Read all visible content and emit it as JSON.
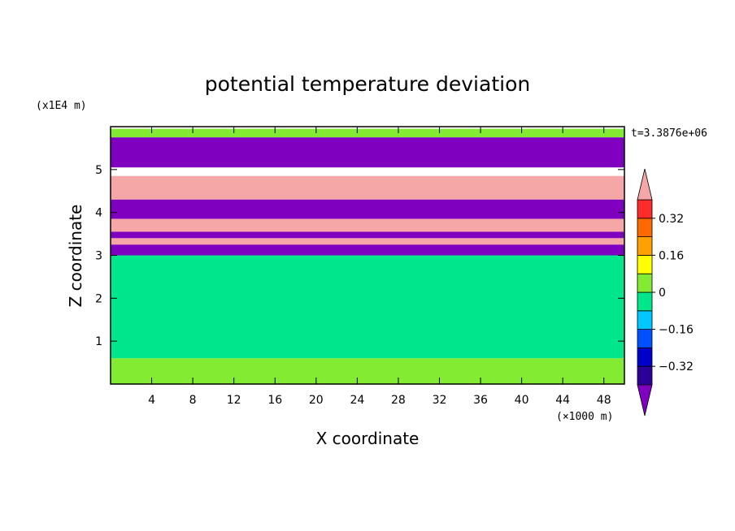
{
  "chart_data": {
    "type": "heatmap",
    "title": "potential temperature deviation",
    "xlabel": "X coordinate",
    "ylabel": "Z coordinate",
    "x_unit_label": "(×1000 m)",
    "y_unit_label": "(x1E4 m)",
    "time_label": "t=3.3876e+06",
    "xlim": [
      0,
      50
    ],
    "ylim": [
      0,
      6
    ],
    "x_ticks": [
      "4",
      "8",
      "12",
      "16",
      "20",
      "24",
      "28",
      "32",
      "36",
      "40",
      "44",
      "48"
    ],
    "y_ticks": [
      "1",
      "2",
      "3",
      "4",
      "5"
    ],
    "colorbar": {
      "levels": [
        -0.4,
        -0.32,
        -0.24,
        -0.16,
        -0.08,
        0,
        0.08,
        0.16,
        0.24,
        0.32,
        0.4
      ],
      "labels": [
        "0.32",
        "0.16",
        "0",
        "−0.16",
        "−0.32"
      ],
      "colors": [
        "#7f00bf",
        "#2a0096",
        "#0000c8",
        "#0050ff",
        "#00c8ff",
        "#00e68c",
        "#82eb32",
        "#ffff00",
        "#ffa000",
        "#ff6a00",
        "#ff2a2a",
        "#f5a7a7"
      ]
    },
    "bands": [
      {
        "z": [
          5.75,
          5.95
        ],
        "value": 0.03
      },
      {
        "z": [
          5.05,
          5.75
        ],
        "value": -0.45
      },
      {
        "z": [
          4.3,
          4.85
        ],
        "value": 0.45
      },
      {
        "z": [
          3.85,
          4.3
        ],
        "value": -0.45
      },
      {
        "z": [
          3.55,
          3.85
        ],
        "value": 0.45
      },
      {
        "z": [
          3.4,
          3.55
        ],
        "value": -0.45
      },
      {
        "z": [
          3.25,
          3.4
        ],
        "value": 0.45
      },
      {
        "z": [
          3.0,
          3.25
        ],
        "value": -0.45
      },
      {
        "z": [
          0.6,
          3.0
        ],
        "value": -0.02
      },
      {
        "z": [
          0,
          0.6
        ],
        "value": 0.0
      }
    ]
  }
}
